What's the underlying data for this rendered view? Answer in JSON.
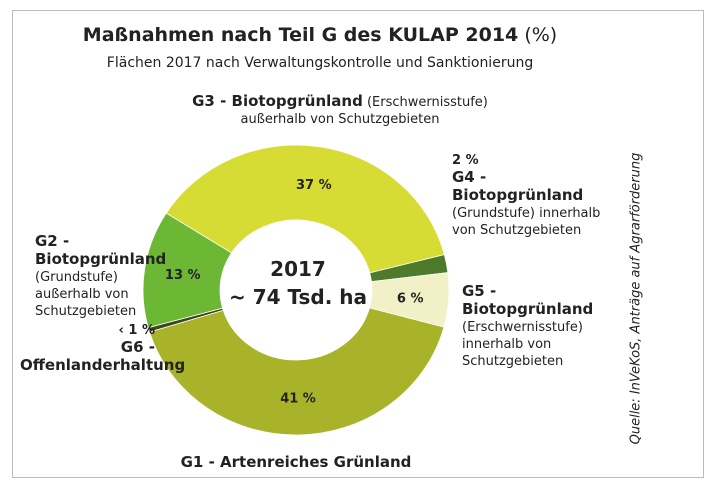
{
  "chart_data": {
    "type": "donut",
    "title": "Maßnahmen nach Teil G des KULAP 2014",
    "title_unit": "(%)",
    "subtitle": "Flächen 2017 nach Verwaltungskontrolle und Sanktionierung",
    "center_labels": [
      "2017",
      "~ 74 Tsd. ha"
    ],
    "source": "Quelle: InVeKoS, Anträge auf Agrarförderung",
    "categories": [
      "G3 - Biotopgrünland",
      "G4 - Biotopgrünland",
      "G5 - Biotopgrünland",
      "G1 - Artenreiches Grünland",
      "G6 - Offenlanderhaltung",
      "G2 - Biotopgrünland"
    ],
    "descriptions": [
      "(Erschwernisstufe) außerhalb von Schutzgebieten",
      "(Grundstufe) innerhalb von Schutzgebieten",
      "(Erschwernisstufe) innerhalb von Schutzgebieten",
      null,
      null,
      "(Grundstufe) außerhalb von Schutzgebieten"
    ],
    "values": [
      37,
      2,
      6,
      41,
      0.5,
      13
    ],
    "value_labels": [
      "37 %",
      "2 %",
      "6 %",
      "41 %",
      "‹ 1 %",
      "13 %"
    ],
    "colors": [
      "#d6dc33",
      "#4e7a2c",
      "#f1f0c6",
      "#a8b32a",
      "#3a4718",
      "#6cb733"
    ]
  }
}
